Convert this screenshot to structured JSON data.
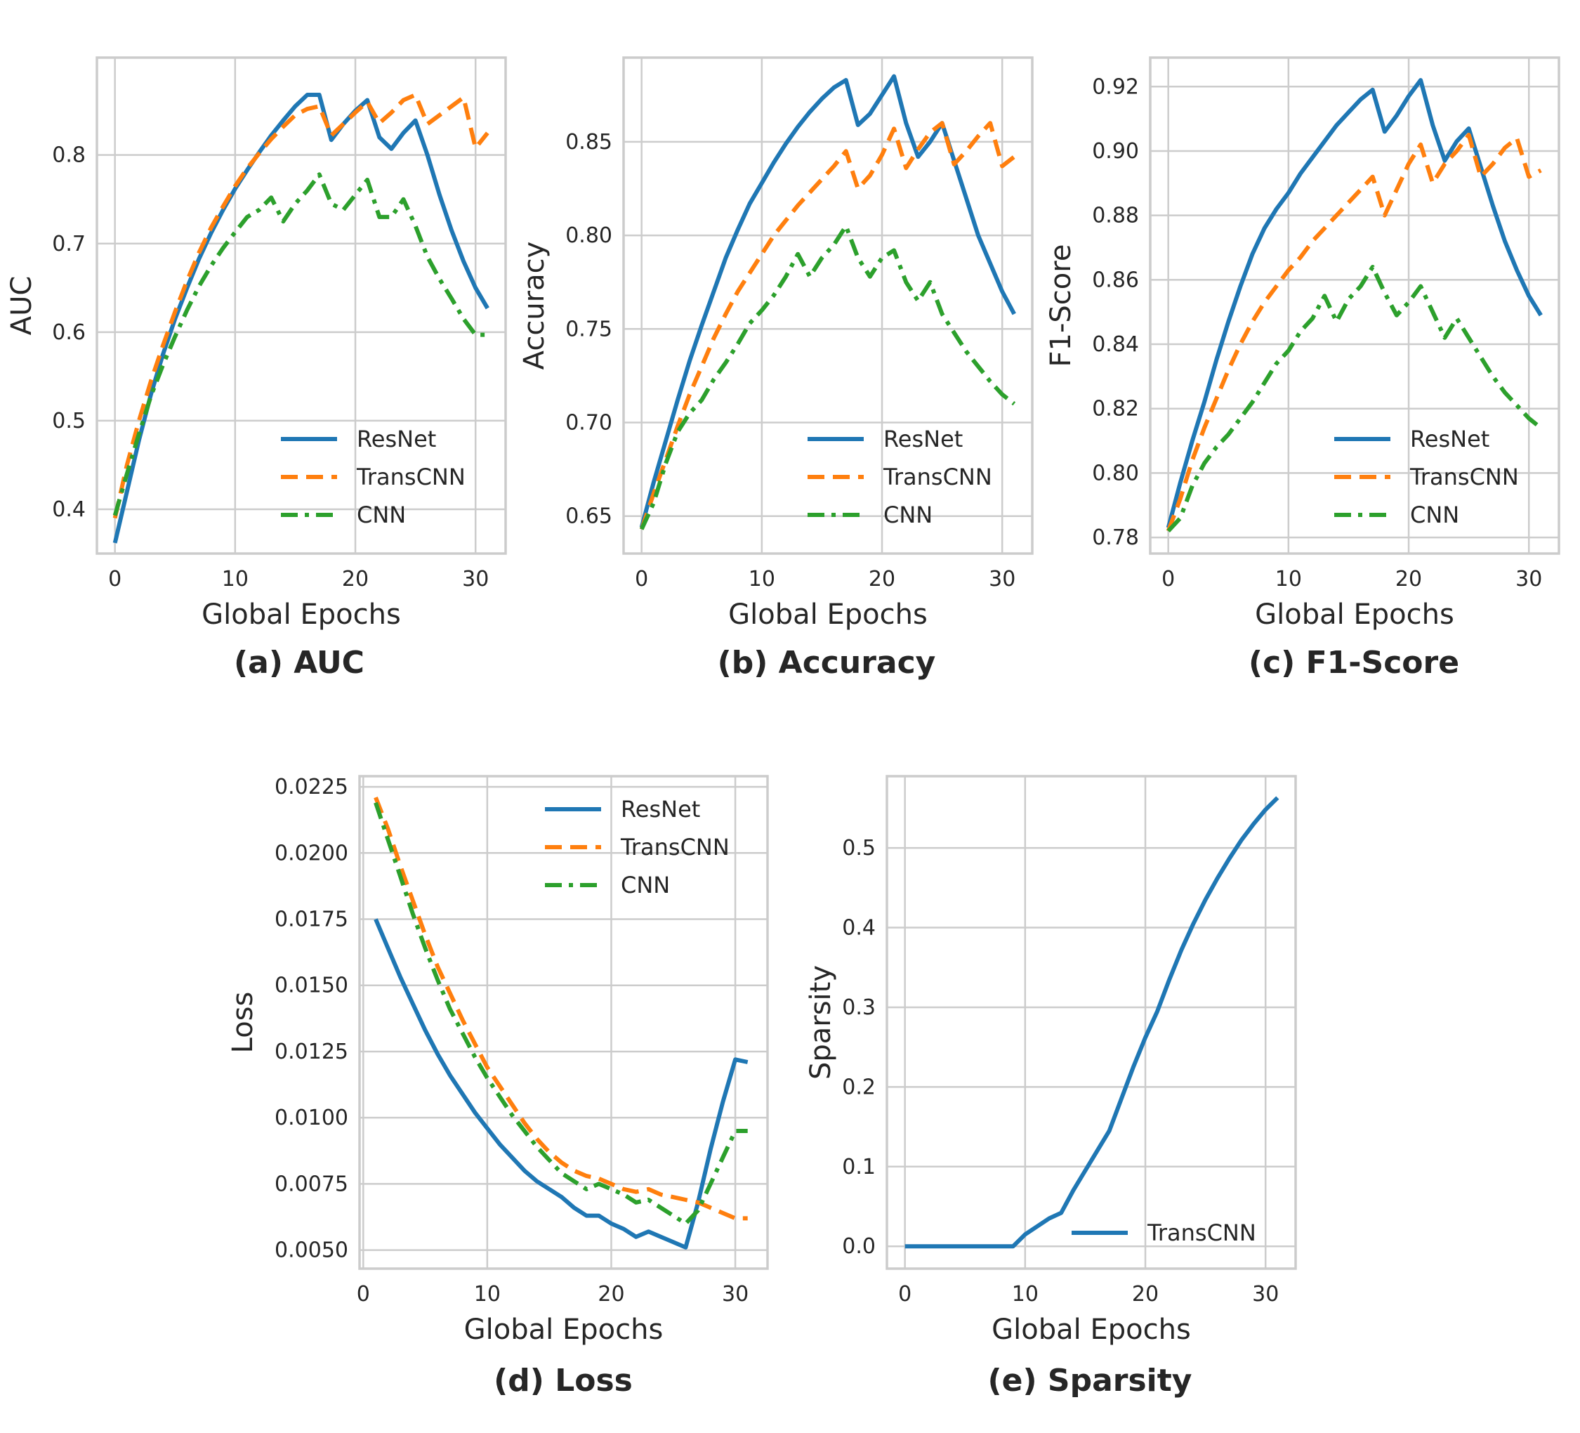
{
  "colors": {
    "ResNet": "#1f77b4",
    "TransCNN": "#ff7f0e",
    "CNN": "#2ca02c",
    "grid": "#cccccc",
    "frame": "#cccccc",
    "text": "#262626"
  },
  "chart_data": [
    {
      "id": "auc",
      "type": "line",
      "caption": "(a) AUC",
      "xlabel": "Global Epochs",
      "ylabel": "AUC",
      "xlim": [
        -1.5,
        32.5
      ],
      "ylim": [
        0.35,
        0.91
      ],
      "xticks": [
        0,
        10,
        20,
        30
      ],
      "yticks": [
        0.4,
        0.5,
        0.6,
        0.7,
        0.8
      ],
      "ytick_labels": [
        "0.4",
        "0.5",
        "0.6",
        "0.7",
        "0.8"
      ],
      "grid": true,
      "legend": "lower right",
      "series": [
        {
          "name": "ResNet",
          "style": "solid",
          "x": [
            0,
            1,
            2,
            3,
            4,
            5,
            6,
            7,
            8,
            9,
            10,
            11,
            12,
            13,
            14,
            15,
            16,
            17,
            18,
            19,
            20,
            21,
            22,
            23,
            24,
            25,
            26,
            27,
            28,
            29,
            30,
            31
          ],
          "y": [
            0.362,
            0.42,
            0.478,
            0.53,
            0.575,
            0.615,
            0.65,
            0.683,
            0.712,
            0.738,
            0.762,
            0.783,
            0.803,
            0.822,
            0.839,
            0.855,
            0.868,
            0.868,
            0.817,
            0.835,
            0.85,
            0.862,
            0.82,
            0.807,
            0.825,
            0.839,
            0.8,
            0.755,
            0.715,
            0.68,
            0.65,
            0.627
          ]
        },
        {
          "name": "TransCNN",
          "style": "dashed",
          "x": [
            0,
            1,
            2,
            3,
            4,
            5,
            6,
            7,
            8,
            9,
            10,
            11,
            12,
            13,
            14,
            15,
            16,
            17,
            18,
            19,
            20,
            21,
            22,
            23,
            24,
            25,
            26,
            27,
            28,
            29,
            30,
            31
          ],
          "y": [
            0.39,
            0.45,
            0.5,
            0.545,
            0.585,
            0.623,
            0.658,
            0.69,
            0.718,
            0.742,
            0.765,
            0.785,
            0.802,
            0.818,
            0.832,
            0.845,
            0.852,
            0.855,
            0.822,
            0.835,
            0.848,
            0.86,
            0.836,
            0.848,
            0.862,
            0.868,
            0.835,
            0.845,
            0.855,
            0.865,
            0.808,
            0.825
          ]
        },
        {
          "name": "CNN",
          "style": "dashdot",
          "x": [
            0,
            1,
            2,
            3,
            4,
            5,
            6,
            7,
            8,
            9,
            10,
            11,
            12,
            13,
            14,
            15,
            16,
            17,
            18,
            19,
            20,
            21,
            22,
            23,
            24,
            25,
            26,
            27,
            28,
            29,
            30,
            31
          ],
          "y": [
            0.393,
            0.44,
            0.485,
            0.528,
            0.563,
            0.595,
            0.625,
            0.652,
            0.675,
            0.695,
            0.713,
            0.73,
            0.738,
            0.752,
            0.725,
            0.745,
            0.76,
            0.778,
            0.745,
            0.738,
            0.755,
            0.772,
            0.73,
            0.73,
            0.75,
            0.72,
            0.685,
            0.66,
            0.638,
            0.615,
            0.597,
            0.597
          ]
        }
      ]
    },
    {
      "id": "accuracy",
      "type": "line",
      "caption": "(b) Accuracy",
      "xlabel": "Global Epochs",
      "ylabel": "Accuracy",
      "xlim": [
        -1.5,
        32.5
      ],
      "ylim": [
        0.63,
        0.895
      ],
      "xticks": [
        0,
        10,
        20,
        30
      ],
      "yticks": [
        0.65,
        0.7,
        0.75,
        0.8,
        0.85
      ],
      "ytick_labels": [
        "0.65",
        "0.70",
        "0.75",
        "0.80",
        "0.85"
      ],
      "grid": true,
      "legend": "lower right",
      "series": [
        {
          "name": "ResNet",
          "style": "solid",
          "x": [
            0,
            1,
            2,
            3,
            4,
            5,
            6,
            7,
            8,
            9,
            10,
            11,
            12,
            13,
            14,
            15,
            16,
            17,
            18,
            19,
            20,
            21,
            22,
            23,
            24,
            25,
            26,
            27,
            28,
            29,
            30,
            31
          ],
          "y": [
            0.644,
            0.668,
            0.69,
            0.712,
            0.733,
            0.752,
            0.77,
            0.788,
            0.803,
            0.817,
            0.828,
            0.839,
            0.849,
            0.858,
            0.866,
            0.873,
            0.879,
            0.883,
            0.859,
            0.865,
            0.875,
            0.885,
            0.86,
            0.842,
            0.85,
            0.86,
            0.84,
            0.82,
            0.8,
            0.785,
            0.77,
            0.758
          ]
        },
        {
          "name": "TransCNN",
          "style": "dashed",
          "x": [
            0,
            1,
            2,
            3,
            4,
            5,
            6,
            7,
            8,
            9,
            10,
            11,
            12,
            13,
            14,
            15,
            16,
            17,
            18,
            19,
            20,
            21,
            22,
            23,
            24,
            25,
            26,
            27,
            28,
            29,
            30,
            31
          ],
          "y": [
            0.643,
            0.662,
            0.68,
            0.698,
            0.715,
            0.73,
            0.745,
            0.758,
            0.77,
            0.78,
            0.79,
            0.8,
            0.808,
            0.816,
            0.823,
            0.83,
            0.837,
            0.845,
            0.825,
            0.832,
            0.843,
            0.857,
            0.836,
            0.846,
            0.855,
            0.86,
            0.838,
            0.845,
            0.853,
            0.86,
            0.837,
            0.842
          ]
        },
        {
          "name": "CNN",
          "style": "dashdot",
          "x": [
            0,
            1,
            2,
            3,
            4,
            5,
            6,
            7,
            8,
            9,
            10,
            11,
            12,
            13,
            14,
            15,
            16,
            17,
            18,
            19,
            20,
            21,
            22,
            23,
            24,
            25,
            26,
            27,
            28,
            29,
            30,
            31
          ],
          "y": [
            0.643,
            0.657,
            0.678,
            0.695,
            0.705,
            0.712,
            0.723,
            0.732,
            0.742,
            0.753,
            0.76,
            0.768,
            0.778,
            0.79,
            0.778,
            0.788,
            0.795,
            0.805,
            0.788,
            0.778,
            0.788,
            0.792,
            0.775,
            0.765,
            0.775,
            0.758,
            0.748,
            0.738,
            0.73,
            0.722,
            0.715,
            0.71
          ]
        }
      ]
    },
    {
      "id": "f1",
      "type": "line",
      "caption": "(c) F1-Score",
      "xlabel": "Global Epochs",
      "ylabel": "F1-Score",
      "xlim": [
        -1.5,
        32.5
      ],
      "ylim": [
        0.775,
        0.929
      ],
      "xticks": [
        0,
        10,
        20,
        30
      ],
      "yticks": [
        0.78,
        0.8,
        0.82,
        0.84,
        0.86,
        0.88,
        0.9,
        0.92
      ],
      "ytick_labels": [
        "0.78",
        "0.80",
        "0.82",
        "0.84",
        "0.86",
        "0.88",
        "0.90",
        "0.92"
      ],
      "grid": true,
      "legend": "lower right",
      "series": [
        {
          "name": "ResNet",
          "style": "solid",
          "x": [
            0,
            1,
            2,
            3,
            4,
            5,
            6,
            7,
            8,
            9,
            10,
            11,
            12,
            13,
            14,
            15,
            16,
            17,
            18,
            19,
            20,
            21,
            22,
            23,
            24,
            25,
            26,
            27,
            28,
            29,
            30,
            31
          ],
          "y": [
            0.783,
            0.797,
            0.81,
            0.822,
            0.835,
            0.847,
            0.858,
            0.868,
            0.876,
            0.882,
            0.887,
            0.893,
            0.898,
            0.903,
            0.908,
            0.912,
            0.916,
            0.919,
            0.906,
            0.911,
            0.917,
            0.922,
            0.908,
            0.897,
            0.903,
            0.907,
            0.895,
            0.883,
            0.872,
            0.863,
            0.855,
            0.849
          ]
        },
        {
          "name": "TransCNN",
          "style": "dashed",
          "x": [
            0,
            1,
            2,
            3,
            4,
            5,
            6,
            7,
            8,
            9,
            10,
            11,
            12,
            13,
            14,
            15,
            16,
            17,
            18,
            19,
            20,
            21,
            22,
            23,
            24,
            25,
            26,
            27,
            28,
            29,
            30,
            31
          ],
          "y": [
            0.782,
            0.792,
            0.804,
            0.814,
            0.823,
            0.832,
            0.84,
            0.847,
            0.853,
            0.858,
            0.863,
            0.867,
            0.872,
            0.876,
            0.88,
            0.884,
            0.888,
            0.892,
            0.88,
            0.888,
            0.896,
            0.902,
            0.89,
            0.896,
            0.9,
            0.905,
            0.892,
            0.896,
            0.901,
            0.904,
            0.892,
            0.894
          ]
        },
        {
          "name": "CNN",
          "style": "dashdot",
          "x": [
            0,
            1,
            2,
            3,
            4,
            5,
            6,
            7,
            8,
            9,
            10,
            11,
            12,
            13,
            14,
            15,
            16,
            17,
            18,
            19,
            20,
            21,
            22,
            23,
            24,
            25,
            26,
            27,
            28,
            29,
            30,
            31
          ],
          "y": [
            0.782,
            0.786,
            0.796,
            0.803,
            0.808,
            0.812,
            0.817,
            0.822,
            0.828,
            0.834,
            0.838,
            0.844,
            0.848,
            0.855,
            0.847,
            0.854,
            0.858,
            0.864,
            0.856,
            0.849,
            0.853,
            0.858,
            0.85,
            0.842,
            0.848,
            0.842,
            0.836,
            0.83,
            0.825,
            0.821,
            0.817,
            0.814
          ]
        }
      ]
    },
    {
      "id": "loss",
      "type": "line",
      "caption": "(d) Loss",
      "xlabel": "Global Epochs",
      "ylabel": "Loss",
      "xlim": [
        -0.3,
        32.6
      ],
      "ylim": [
        0.0043,
        0.0229
      ],
      "xticks": [
        0,
        10,
        20,
        30
      ],
      "yticks": [
        0.005,
        0.0075,
        0.01,
        0.0125,
        0.015,
        0.0175,
        0.02,
        0.0225
      ],
      "ytick_labels": [
        "0.0050",
        "0.0075",
        "0.0100",
        "0.0125",
        "0.0150",
        "0.0175",
        "0.0200",
        "0.0225"
      ],
      "grid": true,
      "legend": "upper right",
      "series": [
        {
          "name": "ResNet",
          "style": "solid",
          "x": [
            1,
            2,
            3,
            4,
            5,
            6,
            7,
            8,
            9,
            10,
            11,
            12,
            13,
            14,
            15,
            16,
            17,
            18,
            19,
            20,
            21,
            22,
            23,
            24,
            25,
            26,
            27,
            28,
            29,
            30,
            31
          ],
          "y": [
            0.0175,
            0.0164,
            0.0153,
            0.0143,
            0.0133,
            0.0124,
            0.0116,
            0.0109,
            0.0102,
            0.0096,
            0.009,
            0.0085,
            0.008,
            0.0076,
            0.0073,
            0.007,
            0.0066,
            0.0063,
            0.0063,
            0.006,
            0.0058,
            0.0055,
            0.0057,
            0.0055,
            0.0053,
            0.0051,
            0.0068,
            0.0088,
            0.0106,
            0.0122,
            0.0121
          ]
        },
        {
          "name": "TransCNN",
          "style": "dashed",
          "x": [
            1,
            2,
            3,
            4,
            5,
            6,
            7,
            8,
            9,
            10,
            11,
            12,
            13,
            14,
            15,
            16,
            17,
            18,
            19,
            20,
            21,
            22,
            23,
            24,
            25,
            26,
            27,
            28,
            29,
            30,
            31
          ],
          "y": [
            0.0221,
            0.0209,
            0.0195,
            0.0182,
            0.0169,
            0.0157,
            0.0147,
            0.0137,
            0.0128,
            0.0119,
            0.0112,
            0.0105,
            0.0098,
            0.0092,
            0.0087,
            0.0083,
            0.008,
            0.0078,
            0.0077,
            0.0075,
            0.0073,
            0.0072,
            0.0073,
            0.0071,
            0.007,
            0.0069,
            0.0068,
            0.0066,
            0.0064,
            0.0062,
            0.0062
          ]
        },
        {
          "name": "CNN",
          "style": "dashdot",
          "x": [
            1,
            2,
            3,
            4,
            5,
            6,
            7,
            8,
            9,
            10,
            11,
            12,
            13,
            14,
            15,
            16,
            17,
            18,
            19,
            20,
            21,
            22,
            23,
            24,
            25,
            26,
            27,
            28,
            29,
            30,
            31
          ],
          "y": [
            0.0219,
            0.0205,
            0.0191,
            0.0177,
            0.0164,
            0.0152,
            0.0141,
            0.0132,
            0.0123,
            0.0115,
            0.0108,
            0.0101,
            0.0095,
            0.0089,
            0.0084,
            0.0079,
            0.0076,
            0.0073,
            0.0075,
            0.0073,
            0.0071,
            0.0068,
            0.0069,
            0.0066,
            0.0063,
            0.006,
            0.0065,
            0.0075,
            0.0085,
            0.0095,
            0.0095
          ]
        }
      ]
    },
    {
      "id": "sparsity",
      "type": "line",
      "caption": "(e) Sparsity",
      "xlabel": "Global Epochs",
      "ylabel": "Sparsity",
      "xlim": [
        -1.5,
        32.5
      ],
      "ylim": [
        -0.028,
        0.59
      ],
      "xticks": [
        0,
        10,
        20,
        30
      ],
      "yticks": [
        0.0,
        0.1,
        0.2,
        0.3,
        0.4,
        0.5
      ],
      "ytick_labels": [
        "0.0",
        "0.1",
        "0.2",
        "0.3",
        "0.4",
        "0.5"
      ],
      "grid": true,
      "legend": "lower right",
      "series": [
        {
          "name": "TransCNN",
          "style": "solid",
          "color_key": "ResNet",
          "x": [
            0,
            1,
            2,
            3,
            4,
            5,
            6,
            7,
            8,
            9,
            10,
            11,
            12,
            13,
            14,
            15,
            16,
            17,
            18,
            19,
            20,
            21,
            22,
            23,
            24,
            25,
            26,
            27,
            28,
            29,
            30,
            31
          ],
          "y": [
            0,
            0,
            0,
            0,
            0,
            0,
            0,
            0,
            0,
            0,
            0.015,
            0.025,
            0.035,
            0.042,
            0.07,
            0.095,
            0.12,
            0.145,
            0.185,
            0.225,
            0.262,
            0.295,
            0.335,
            0.372,
            0.405,
            0.435,
            0.462,
            0.487,
            0.51,
            0.53,
            0.548,
            0.563
          ]
        }
      ]
    }
  ]
}
